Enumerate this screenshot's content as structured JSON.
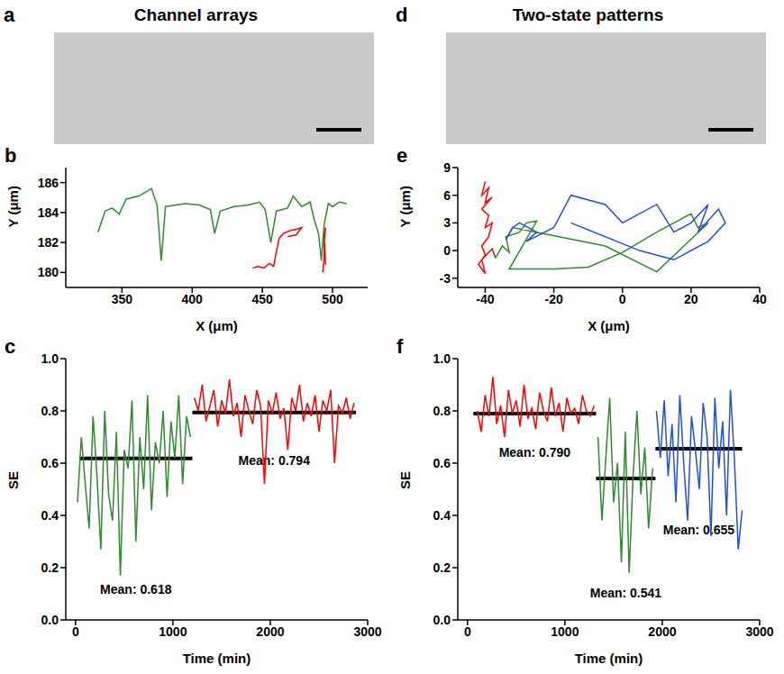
{
  "images": [
    {
      "panel": "a",
      "title": "Channel arrays"
    },
    {
      "panel": "d",
      "title": "Two-state patterns"
    }
  ],
  "chart_data": [
    {
      "panel": "b",
      "type": "line",
      "x_label": "X (μm)",
      "y_label": "Y (μm)",
      "xlim": [
        310,
        525
      ],
      "xticks": [
        350,
        400,
        450,
        500
      ],
      "ylim": [
        179,
        187
      ],
      "yticks": [
        180,
        182,
        184,
        186
      ],
      "series": [
        {
          "color": "#2e8b2e",
          "x": [
            333,
            338,
            343,
            348,
            353,
            362,
            371,
            375,
            378,
            381,
            395,
            405,
            413,
            416,
            420,
            430,
            440,
            448,
            452,
            456,
            460,
            468,
            472,
            478,
            484,
            487,
            490,
            492,
            494,
            497,
            500,
            505,
            510
          ],
          "values": [
            182.7,
            184.1,
            184.3,
            183.9,
            184.9,
            185.1,
            185.6,
            184.5,
            180.8,
            184.4,
            184.6,
            184.5,
            184.2,
            182.6,
            184.1,
            184.4,
            184.5,
            184.7,
            184.2,
            182.0,
            184.1,
            184.3,
            185.1,
            184.4,
            184.7,
            183.5,
            182.6,
            180.8,
            183.2,
            184.6,
            184.4,
            184.7,
            184.6
          ]
        },
        {
          "color": "#ff0000",
          "x": [
            443,
            447,
            451,
            455,
            458,
            460,
            462,
            465,
            470,
            475,
            478,
            474,
            468
          ],
          "values": [
            180.3,
            180.4,
            180.3,
            180.6,
            180.4,
            181.4,
            182.3,
            182.6,
            182.8,
            182.9,
            183.0,
            182.5,
            182.4
          ]
        },
        {
          "color": "#ff0000",
          "x": [
            493,
            494,
            494,
            495,
            494,
            495
          ],
          "values": [
            180.0,
            181.0,
            182.0,
            183.0,
            182.5,
            180.5
          ]
        }
      ]
    },
    {
      "panel": "c",
      "type": "line",
      "x_label": "Time (min)",
      "y_label": "SE",
      "xlim": [
        -100,
        3000
      ],
      "xticks": [
        0,
        1000,
        2000,
        3000
      ],
      "ylim": [
        0,
        1
      ],
      "yticks": [
        {
          "value": 0,
          "label": "0.0"
        },
        {
          "value": 0.2,
          "label": "0.2"
        },
        {
          "value": 0.4,
          "label": "0.4"
        },
        {
          "value": 0.6,
          "label": "0.6"
        },
        {
          "value": 0.8,
          "label": "0.8"
        },
        {
          "value": 1,
          "label": "1.0"
        }
      ],
      "series": [
        {
          "color": "#2e8b2e",
          "x": [
            20,
            60,
            100,
            140,
            180,
            220,
            260,
            300,
            340,
            380,
            420,
            460,
            500,
            540,
            580,
            620,
            660,
            700,
            740,
            780,
            820,
            860,
            900,
            940,
            980,
            1020,
            1060,
            1100,
            1140,
            1180
          ],
          "values": [
            0.45,
            0.7,
            0.52,
            0.35,
            0.78,
            0.55,
            0.27,
            0.8,
            0.48,
            0.38,
            0.72,
            0.17,
            0.65,
            0.58,
            0.84,
            0.3,
            0.7,
            0.5,
            0.86,
            0.42,
            0.68,
            0.6,
            0.8,
            0.47,
            0.76,
            0.62,
            0.86,
            0.52,
            0.78,
            0.7
          ]
        },
        {
          "color": "#ff0000",
          "x": [
            1220,
            1260,
            1300,
            1340,
            1380,
            1420,
            1460,
            1500,
            1540,
            1580,
            1620,
            1660,
            1700,
            1740,
            1780,
            1820,
            1860,
            1900,
            1940,
            1980,
            2020,
            2060,
            2100,
            2140,
            2180,
            2220,
            2260,
            2300,
            2340,
            2380,
            2420,
            2460,
            2500,
            2540,
            2580,
            2620,
            2660,
            2700,
            2740,
            2780,
            2820,
            2860
          ],
          "values": [
            0.85,
            0.8,
            0.9,
            0.76,
            0.82,
            0.88,
            0.74,
            0.84,
            0.79,
            0.92,
            0.78,
            0.83,
            0.7,
            0.86,
            0.8,
            0.75,
            0.88,
            0.82,
            0.52,
            0.84,
            0.79,
            0.87,
            0.77,
            0.81,
            0.65,
            0.85,
            0.8,
            0.9,
            0.76,
            0.83,
            0.78,
            0.86,
            0.72,
            0.84,
            0.8,
            0.88,
            0.6,
            0.82,
            0.79,
            0.85,
            0.77,
            0.83
          ]
        }
      ],
      "annotations": [
        {
          "text": "Mean: 0.618",
          "value": 0.618,
          "x": [
            40,
            1200
          ]
        },
        {
          "text": "Mean: 0.794",
          "value": 0.794,
          "x": [
            1200,
            2880
          ]
        }
      ]
    },
    {
      "panel": "e",
      "type": "line",
      "x_label": "X (μm)",
      "y_label": "Y (μm)",
      "xlim": [
        -48,
        40
      ],
      "xticks": [
        -40,
        -20,
        0,
        20,
        40
      ],
      "ylim": [
        -4,
        9
      ],
      "yticks": [
        -3,
        0,
        3,
        6,
        9
      ],
      "series": [
        {
          "color": "#ff0000",
          "x": [
            -40,
            -41,
            -39,
            -40,
            -38,
            -41,
            -39,
            -40,
            -38,
            -39,
            -41,
            -40,
            -42,
            -40,
            -41,
            -38,
            -37
          ],
          "values": [
            7.5,
            6.0,
            6.8,
            5.2,
            5.8,
            4.5,
            3.8,
            2.5,
            3.0,
            1.5,
            0.5,
            -0.5,
            -1.5,
            -2.5,
            -1.0,
            0.2,
            -0.8
          ]
        },
        {
          "color": "#2e8b2e",
          "x": [
            -37,
            -35,
            -33,
            -34,
            -30,
            -28,
            -25,
            -33,
            -20,
            -10,
            0,
            10,
            15,
            20,
            22,
            25,
            10,
            -5,
            -32,
            -34
          ],
          "values": [
            -0.8,
            0.5,
            -0.2,
            1.5,
            2.0,
            3.0,
            3.2,
            -2.0,
            -2.0,
            -1.8,
            -0.2,
            2.0,
            3.0,
            4.0,
            2.5,
            3.0,
            -2.3,
            0.5,
            2.5,
            1.2
          ]
        },
        {
          "color": "#2050e0",
          "x": [
            -34,
            -32,
            -30,
            -25,
            -28,
            -20,
            -15,
            -5,
            0,
            10,
            15,
            20,
            25,
            22,
            28,
            30,
            25,
            15,
            5,
            -15
          ],
          "values": [
            1.2,
            2.5,
            3.0,
            2.0,
            1.0,
            2.5,
            6.0,
            5.0,
            3.0,
            5.0,
            2.0,
            3.0,
            5.0,
            2.0,
            4.5,
            3.0,
            1.0,
            -1.0,
            0.0,
            3.0
          ]
        }
      ]
    },
    {
      "panel": "f",
      "type": "line",
      "x_label": "Time (min)",
      "y_label": "SE",
      "xlim": [
        -100,
        3000
      ],
      "xticks": [
        0,
        1000,
        2000,
        3000
      ],
      "ylim": [
        0,
        1
      ],
      "yticks": [
        {
          "value": 0,
          "label": "0.0"
        },
        {
          "value": 0.2,
          "label": "0.2"
        },
        {
          "value": 0.4,
          "label": "0.4"
        },
        {
          "value": 0.6,
          "label": "0.6"
        },
        {
          "value": 0.8,
          "label": "0.8"
        },
        {
          "value": 1,
          "label": "1.0"
        }
      ],
      "series": [
        {
          "color": "#ff0000",
          "x": [
            100,
            140,
            180,
            220,
            260,
            300,
            340,
            380,
            420,
            460,
            500,
            540,
            580,
            620,
            660,
            700,
            740,
            780,
            820,
            860,
            900,
            940,
            980,
            1020,
            1060,
            1100,
            1140,
            1180,
            1220,
            1260,
            1300
          ],
          "values": [
            0.8,
            0.72,
            0.86,
            0.78,
            0.93,
            0.75,
            0.82,
            0.7,
            0.88,
            0.79,
            0.84,
            0.74,
            0.9,
            0.77,
            0.81,
            0.73,
            0.87,
            0.8,
            0.76,
            0.89,
            0.78,
            0.83,
            0.72,
            0.85,
            0.79,
            0.81,
            0.75,
            0.86,
            0.8,
            0.78,
            0.82
          ]
        },
        {
          "color": "#2e8b2e",
          "x": [
            1340,
            1380,
            1420,
            1460,
            1500,
            1540,
            1580,
            1620,
            1660,
            1700,
            1740,
            1780,
            1820,
            1860,
            1900
          ],
          "values": [
            0.7,
            0.38,
            0.62,
            0.85,
            0.45,
            0.6,
            0.22,
            0.72,
            0.18,
            0.55,
            0.8,
            0.48,
            0.66,
            0.35,
            0.58
          ]
        },
        {
          "color": "#2050e0",
          "x": [
            1940,
            1980,
            2020,
            2060,
            2100,
            2140,
            2180,
            2220,
            2260,
            2300,
            2340,
            2380,
            2420,
            2460,
            2500,
            2540,
            2580,
            2620,
            2660,
            2700,
            2740,
            2780,
            2820
          ],
          "values": [
            0.8,
            0.62,
            0.84,
            0.55,
            0.75,
            0.45,
            0.86,
            0.6,
            0.38,
            0.78,
            0.65,
            0.5,
            0.83,
            0.7,
            0.32,
            0.85,
            0.58,
            0.76,
            0.4,
            0.88,
            0.62,
            0.27,
            0.42
          ]
        }
      ],
      "annotations": [
        {
          "text": "Mean: 0.790",
          "value": 0.79,
          "x": [
            60,
            1320
          ]
        },
        {
          "text": "Mean: 0.541",
          "value": 0.541,
          "x": [
            1320,
            1930
          ]
        },
        {
          "text": "Mean: 0.655",
          "value": 0.655,
          "x": [
            1930,
            2820
          ]
        }
      ]
    }
  ]
}
